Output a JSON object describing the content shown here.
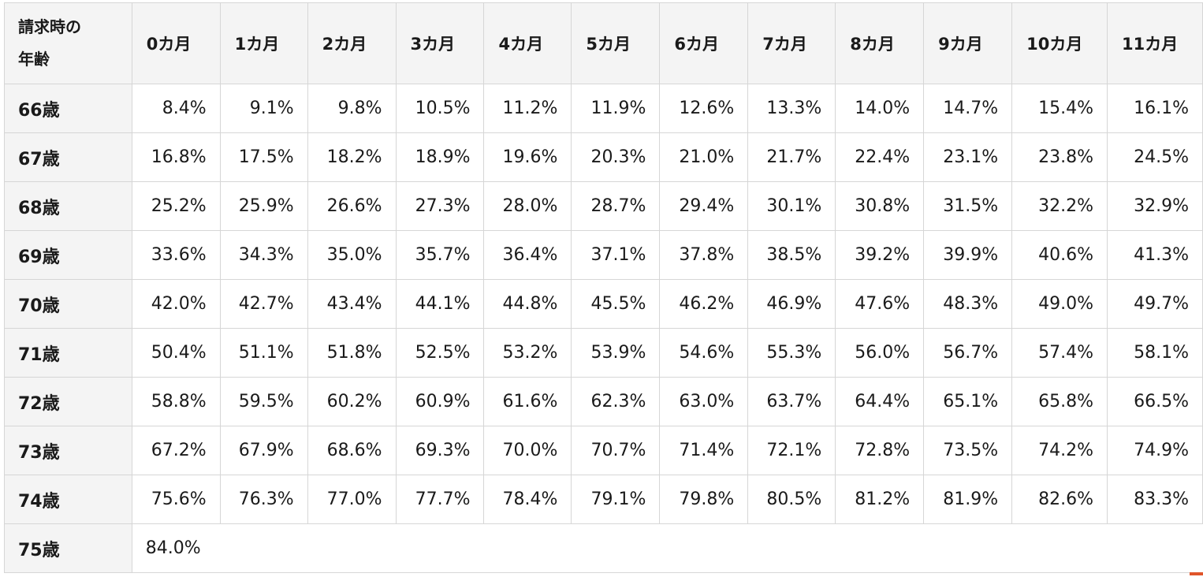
{
  "table": {
    "corner_header_line1": "請求時の",
    "corner_header_line2": "年齢",
    "columns": [
      "0カ月",
      "1カ月",
      "2カ月",
      "3カ月",
      "4カ月",
      "5カ月",
      "6カ月",
      "7カ月",
      "8カ月",
      "9カ月",
      "10カ月",
      "11カ月"
    ],
    "rows": [
      {
        "age": "66歳",
        "values": [
          "8.4%",
          "9.1%",
          "9.8%",
          "10.5%",
          "11.2%",
          "11.9%",
          "12.6%",
          "13.3%",
          "14.0%",
          "14.7%",
          "15.4%",
          "16.1%"
        ]
      },
      {
        "age": "67歳",
        "values": [
          "16.8%",
          "17.5%",
          "18.2%",
          "18.9%",
          "19.6%",
          "20.3%",
          "21.0%",
          "21.7%",
          "22.4%",
          "23.1%",
          "23.8%",
          "24.5%"
        ]
      },
      {
        "age": "68歳",
        "values": [
          "25.2%",
          "25.9%",
          "26.6%",
          "27.3%",
          "28.0%",
          "28.7%",
          "29.4%",
          "30.1%",
          "30.8%",
          "31.5%",
          "32.2%",
          "32.9%"
        ]
      },
      {
        "age": "69歳",
        "values": [
          "33.6%",
          "34.3%",
          "35.0%",
          "35.7%",
          "36.4%",
          "37.1%",
          "37.8%",
          "38.5%",
          "39.2%",
          "39.9%",
          "40.6%",
          "41.3%"
        ]
      },
      {
        "age": "70歳",
        "values": [
          "42.0%",
          "42.7%",
          "43.4%",
          "44.1%",
          "44.8%",
          "45.5%",
          "46.2%",
          "46.9%",
          "47.6%",
          "48.3%",
          "49.0%",
          "49.7%"
        ]
      },
      {
        "age": "71歳",
        "values": [
          "50.4%",
          "51.1%",
          "51.8%",
          "52.5%",
          "53.2%",
          "53.9%",
          "54.6%",
          "55.3%",
          "56.0%",
          "56.7%",
          "57.4%",
          "58.1%"
        ]
      },
      {
        "age": "72歳",
        "values": [
          "58.8%",
          "59.5%",
          "60.2%",
          "60.9%",
          "61.6%",
          "62.3%",
          "63.0%",
          "63.7%",
          "64.4%",
          "65.1%",
          "65.8%",
          "66.5%"
        ]
      },
      {
        "age": "73歳",
        "values": [
          "67.2%",
          "67.9%",
          "68.6%",
          "69.3%",
          "70.0%",
          "70.7%",
          "71.4%",
          "72.1%",
          "72.8%",
          "73.5%",
          "74.2%",
          "74.9%"
        ]
      },
      {
        "age": "74歳",
        "values": [
          "75.6%",
          "76.3%",
          "77.0%",
          "77.7%",
          "78.4%",
          "79.1%",
          "79.8%",
          "80.5%",
          "81.2%",
          "81.9%",
          "82.6%",
          "83.3%"
        ]
      },
      {
        "age": "75歳",
        "values": [
          "84.0%"
        ]
      }
    ]
  },
  "colors": {
    "header_background": "#f4f4f4",
    "border": "#d6d6d6",
    "accent": "#e0552a"
  }
}
